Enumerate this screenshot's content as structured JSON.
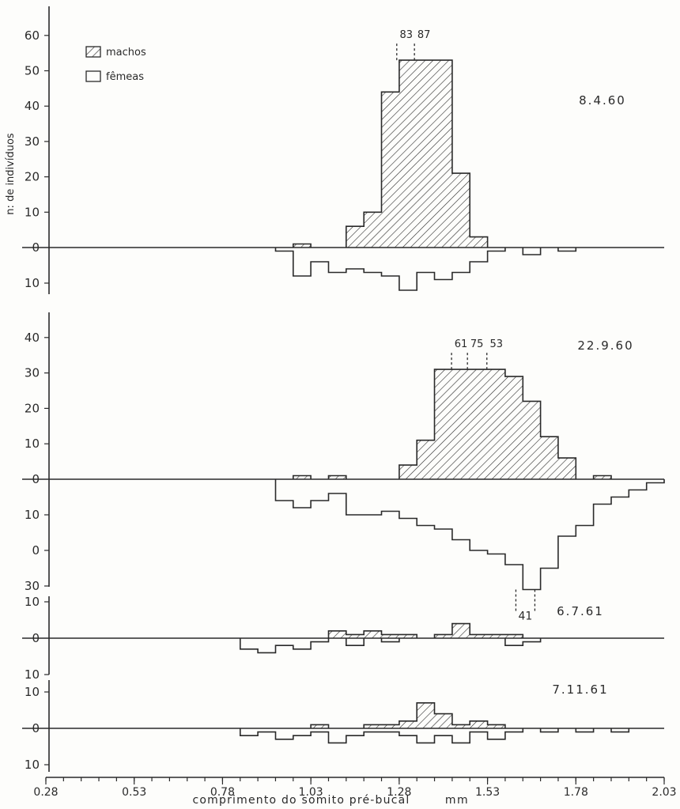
{
  "figure": {
    "ylabel": "n: de indivíduos",
    "xlabel": "comprimento do somito pré-bucal",
    "xunit": "mm",
    "legend": {
      "male": "machos",
      "female": "fêmeas"
    },
    "xticks": [
      "0.28",
      "0.53",
      "0.78",
      "1.03",
      "1.28",
      "1.53",
      "1.78",
      "2.03"
    ]
  },
  "chart_data": [
    {
      "type": "bar",
      "title": "8.4.60",
      "x_range": [
        0.28,
        2.03
      ],
      "bin_width_mm": 0.05,
      "y_up_ticks": [
        "0",
        "10",
        "20",
        "30",
        "40",
        "50",
        "60"
      ],
      "y_down_ticks": [
        "10"
      ],
      "series": [
        {
          "name": "machos",
          "bins": [
            [
              0.98,
              1.03,
              1
            ],
            [
              1.13,
              1.18,
              6
            ],
            [
              1.18,
              1.23,
              10
            ],
            [
              1.23,
              1.28,
              44
            ],
            [
              1.28,
              1.33,
              53
            ],
            [
              1.33,
              1.38,
              53
            ],
            [
              1.38,
              1.43,
              53
            ],
            [
              1.43,
              1.48,
              21
            ],
            [
              1.48,
              1.53,
              3
            ]
          ]
        },
        {
          "name": "fêmeas",
          "bins": [
            [
              0.93,
              0.98,
              1
            ],
            [
              0.98,
              1.03,
              8
            ],
            [
              1.03,
              1.08,
              4
            ],
            [
              1.08,
              1.13,
              7
            ],
            [
              1.13,
              1.18,
              6
            ],
            [
              1.18,
              1.23,
              7
            ],
            [
              1.23,
              1.28,
              8
            ],
            [
              1.28,
              1.33,
              12
            ],
            [
              1.33,
              1.38,
              7
            ],
            [
              1.38,
              1.43,
              9
            ],
            [
              1.43,
              1.48,
              7
            ],
            [
              1.48,
              1.53,
              4
            ],
            [
              1.53,
              1.58,
              1
            ],
            [
              1.63,
              1.68,
              2
            ],
            [
              1.73,
              1.78,
              1
            ]
          ]
        }
      ],
      "overflow_labels": [
        {
          "text": "83",
          "x": 1.3,
          "cap": 83,
          "direction": "up"
        },
        {
          "text": "87",
          "x": 1.35,
          "cap": 87,
          "direction": "up"
        }
      ]
    },
    {
      "type": "bar",
      "title": "22.9.60",
      "x_range": [
        0.28,
        2.03
      ],
      "bin_width_mm": 0.05,
      "y_up_ticks": [
        "0",
        "10",
        "20",
        "30",
        "40"
      ],
      "y_down_ticks": [
        "10",
        "0",
        "30"
      ],
      "series": [
        {
          "name": "machos",
          "bins": [
            [
              0.98,
              1.03,
              1
            ],
            [
              1.08,
              1.13,
              1
            ],
            [
              1.28,
              1.33,
              4
            ],
            [
              1.33,
              1.38,
              11
            ],
            [
              1.38,
              1.43,
              31
            ],
            [
              1.43,
              1.48,
              31
            ],
            [
              1.48,
              1.53,
              31
            ],
            [
              1.53,
              1.58,
              31
            ],
            [
              1.58,
              1.63,
              29
            ],
            [
              1.63,
              1.68,
              22
            ],
            [
              1.68,
              1.73,
              12
            ],
            [
              1.73,
              1.78,
              6
            ],
            [
              1.83,
              1.88,
              1
            ]
          ]
        },
        {
          "name": "fêmeas",
          "bins": [
            [
              0.93,
              0.98,
              6
            ],
            [
              0.98,
              1.03,
              8
            ],
            [
              1.03,
              1.08,
              6
            ],
            [
              1.08,
              1.13,
              4
            ],
            [
              1.13,
              1.18,
              10
            ],
            [
              1.18,
              1.23,
              10
            ],
            [
              1.23,
              1.28,
              9
            ],
            [
              1.28,
              1.33,
              11
            ],
            [
              1.33,
              1.38,
              13
            ],
            [
              1.38,
              1.43,
              14
            ],
            [
              1.43,
              1.48,
              17
            ],
            [
              1.48,
              1.53,
              20
            ],
            [
              1.53,
              1.58,
              21
            ],
            [
              1.58,
              1.63,
              24
            ],
            [
              1.63,
              1.68,
              33
            ],
            [
              1.68,
              1.73,
              25
            ],
            [
              1.73,
              1.78,
              16
            ],
            [
              1.78,
              1.83,
              13
            ],
            [
              1.83,
              1.88,
              7
            ],
            [
              1.88,
              1.93,
              5
            ],
            [
              1.93,
              1.98,
              3
            ],
            [
              1.98,
              2.03,
              1
            ]
          ]
        }
      ],
      "overflow_labels": [
        {
          "text": "61",
          "x": 1.455,
          "cap": 61,
          "direction": "up"
        },
        {
          "text": "75",
          "x": 1.5,
          "cap": 75,
          "direction": "up"
        },
        {
          "text": "53",
          "x": 1.555,
          "cap": 53,
          "direction": "up"
        },
        {
          "text": "41",
          "x": 1.655,
          "cap": 41,
          "direction": "down"
        }
      ]
    },
    {
      "type": "bar",
      "title": "6.7.61",
      "x_range": [
        0.28,
        2.03
      ],
      "bin_width_mm": 0.05,
      "y_up_ticks": [
        "0",
        "10"
      ],
      "y_down_ticks": [
        "10"
      ],
      "series": [
        {
          "name": "machos",
          "bins": [
            [
              1.08,
              1.13,
              2
            ],
            [
              1.13,
              1.18,
              1
            ],
            [
              1.18,
              1.23,
              2
            ],
            [
              1.23,
              1.28,
              1
            ],
            [
              1.28,
              1.33,
              1
            ],
            [
              1.38,
              1.43,
              1
            ],
            [
              1.43,
              1.48,
              4
            ],
            [
              1.48,
              1.53,
              1
            ],
            [
              1.53,
              1.58,
              1
            ],
            [
              1.58,
              1.63,
              1
            ]
          ]
        },
        {
          "name": "fêmeas",
          "bins": [
            [
              0.83,
              0.88,
              3
            ],
            [
              0.88,
              0.93,
              4
            ],
            [
              0.93,
              0.98,
              2
            ],
            [
              0.98,
              1.03,
              3
            ],
            [
              1.03,
              1.08,
              1
            ],
            [
              1.13,
              1.18,
              2
            ],
            [
              1.23,
              1.28,
              1
            ],
            [
              1.58,
              1.63,
              2
            ],
            [
              1.63,
              1.68,
              1
            ]
          ]
        }
      ],
      "overflow_labels": []
    },
    {
      "type": "bar",
      "title": "7.11.61",
      "x_range": [
        0.28,
        2.03
      ],
      "bin_width_mm": 0.05,
      "y_up_ticks": [
        "0",
        "10"
      ],
      "y_down_ticks": [
        "10"
      ],
      "series": [
        {
          "name": "machos",
          "bins": [
            [
              1.03,
              1.08,
              1
            ],
            [
              1.18,
              1.23,
              1
            ],
            [
              1.23,
              1.28,
              1
            ],
            [
              1.28,
              1.33,
              2
            ],
            [
              1.33,
              1.38,
              7
            ],
            [
              1.38,
              1.43,
              4
            ],
            [
              1.43,
              1.48,
              1
            ],
            [
              1.48,
              1.53,
              2
            ],
            [
              1.53,
              1.58,
              1
            ]
          ]
        },
        {
          "name": "fêmeas",
          "bins": [
            [
              0.83,
              0.88,
              2
            ],
            [
              0.88,
              0.93,
              1
            ],
            [
              0.93,
              0.98,
              3
            ],
            [
              0.98,
              1.03,
              2
            ],
            [
              1.03,
              1.08,
              1
            ],
            [
              1.08,
              1.13,
              4
            ],
            [
              1.13,
              1.18,
              2
            ],
            [
              1.18,
              1.23,
              1
            ],
            [
              1.23,
              1.28,
              1
            ],
            [
              1.28,
              1.33,
              2
            ],
            [
              1.33,
              1.38,
              4
            ],
            [
              1.38,
              1.43,
              2
            ],
            [
              1.43,
              1.48,
              4
            ],
            [
              1.48,
              1.53,
              1
            ],
            [
              1.53,
              1.58,
              3
            ],
            [
              1.58,
              1.63,
              1
            ],
            [
              1.68,
              1.73,
              1
            ],
            [
              1.78,
              1.83,
              1
            ],
            [
              1.88,
              1.93,
              1
            ]
          ]
        }
      ],
      "overflow_labels": []
    }
  ]
}
